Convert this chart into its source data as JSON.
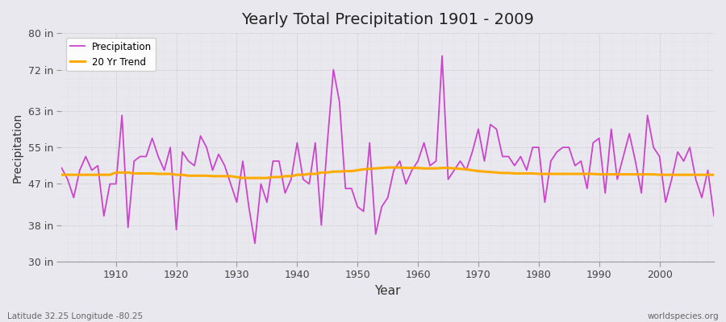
{
  "title": "Yearly Total Precipitation 1901 - 2009",
  "xlabel": "Year",
  "ylabel": "Precipitation",
  "xlim": [
    1901,
    2009
  ],
  "ylim": [
    30,
    80
  ],
  "yticks": [
    30,
    38,
    47,
    55,
    63,
    72,
    80
  ],
  "ytick_labels": [
    "30 in",
    "38 in",
    "47 in",
    "55 in",
    "63 in",
    "72 in",
    "80 in"
  ],
  "xticks": [
    1910,
    1920,
    1930,
    1940,
    1950,
    1960,
    1970,
    1980,
    1990,
    2000
  ],
  "bg_color": "#e8e8ee",
  "plot_bg_color": "#e8e8ee",
  "precip_color": "#cc44cc",
  "trend_color": "#ffaa00",
  "precip_label": "Precipitation",
  "trend_label": "20 Yr Trend",
  "footer_left": "Latitude 32.25 Longitude -80.25",
  "footer_right": "worldspecies.org",
  "years": [
    1901,
    1902,
    1903,
    1904,
    1905,
    1906,
    1907,
    1908,
    1909,
    1910,
    1911,
    1912,
    1913,
    1914,
    1915,
    1916,
    1917,
    1918,
    1919,
    1920,
    1921,
    1922,
    1923,
    1924,
    1925,
    1926,
    1927,
    1928,
    1929,
    1930,
    1931,
    1932,
    1933,
    1934,
    1935,
    1936,
    1937,
    1938,
    1939,
    1940,
    1941,
    1942,
    1943,
    1944,
    1945,
    1946,
    1947,
    1948,
    1949,
    1950,
    1951,
    1952,
    1953,
    1954,
    1955,
    1956,
    1957,
    1958,
    1959,
    1960,
    1961,
    1962,
    1963,
    1964,
    1965,
    1966,
    1967,
    1968,
    1969,
    1970,
    1971,
    1972,
    1973,
    1974,
    1975,
    1976,
    1977,
    1978,
    1979,
    1980,
    1981,
    1982,
    1983,
    1984,
    1985,
    1986,
    1987,
    1988,
    1989,
    1990,
    1991,
    1992,
    1993,
    1994,
    1995,
    1996,
    1997,
    1998,
    1999,
    2000,
    2001,
    2002,
    2003,
    2004,
    2005,
    2006,
    2007,
    2008,
    2009
  ],
  "precip": [
    50.5,
    48.0,
    44.0,
    50.0,
    53.0,
    50.0,
    51.0,
    40.0,
    47.0,
    47.0,
    62.0,
    37.5,
    52.0,
    53.0,
    53.0,
    57.0,
    53.0,
    50.0,
    55.0,
    37.0,
    54.0,
    52.0,
    51.0,
    57.5,
    55.0,
    50.0,
    53.5,
    51.0,
    47.0,
    43.0,
    52.0,
    42.0,
    34.0,
    47.0,
    43.0,
    52.0,
    52.0,
    45.0,
    48.0,
    56.0,
    48.0,
    47.0,
    56.0,
    38.0,
    56.0,
    72.0,
    65.0,
    46.0,
    46.0,
    42.0,
    41.0,
    56.0,
    36.0,
    42.0,
    44.0,
    50.0,
    52.0,
    47.0,
    50.0,
    52.0,
    56.0,
    51.0,
    52.0,
    75.0,
    48.0,
    50.0,
    52.0,
    50.0,
    54.0,
    59.0,
    52.0,
    60.0,
    59.0,
    53.0,
    53.0,
    51.0,
    53.0,
    50.0,
    55.0,
    55.0,
    43.0,
    52.0,
    54.0,
    55.0,
    55.0,
    51.0,
    52.0,
    46.0,
    56.0,
    57.0,
    45.0,
    59.0,
    48.0,
    53.0,
    58.0,
    52.0,
    45.0,
    62.0,
    55.0,
    53.0,
    43.0,
    48.0,
    54.0,
    52.0,
    55.0,
    48.0,
    44.0,
    50.0,
    40.0
  ],
  "trend": [
    49.0,
    49.0,
    49.0,
    49.0,
    49.0,
    49.0,
    49.0,
    49.0,
    49.0,
    49.5,
    49.5,
    49.5,
    49.3,
    49.3,
    49.3,
    49.3,
    49.2,
    49.2,
    49.2,
    49.0,
    49.0,
    48.8,
    48.8,
    48.8,
    48.8,
    48.7,
    48.7,
    48.7,
    48.7,
    48.5,
    48.3,
    48.3,
    48.3,
    48.3,
    48.3,
    48.5,
    48.5,
    48.7,
    48.7,
    49.0,
    49.0,
    49.2,
    49.2,
    49.5,
    49.5,
    49.7,
    49.7,
    49.8,
    49.8,
    50.0,
    50.2,
    50.3,
    50.4,
    50.5,
    50.6,
    50.6,
    50.6,
    50.5,
    50.5,
    50.5,
    50.4,
    50.4,
    50.4,
    50.5,
    50.5,
    50.4,
    50.3,
    50.2,
    50.0,
    49.8,
    49.7,
    49.6,
    49.5,
    49.4,
    49.4,
    49.3,
    49.3,
    49.3,
    49.3,
    49.2,
    49.2,
    49.2,
    49.2,
    49.2,
    49.2,
    49.2,
    49.2,
    49.2,
    49.2,
    49.1,
    49.1,
    49.1,
    49.1,
    49.1,
    49.1,
    49.1,
    49.1,
    49.1,
    49.1,
    49.0,
    49.0,
    49.0,
    49.0,
    49.0,
    49.0,
    49.0,
    49.0,
    49.0,
    49.0
  ]
}
